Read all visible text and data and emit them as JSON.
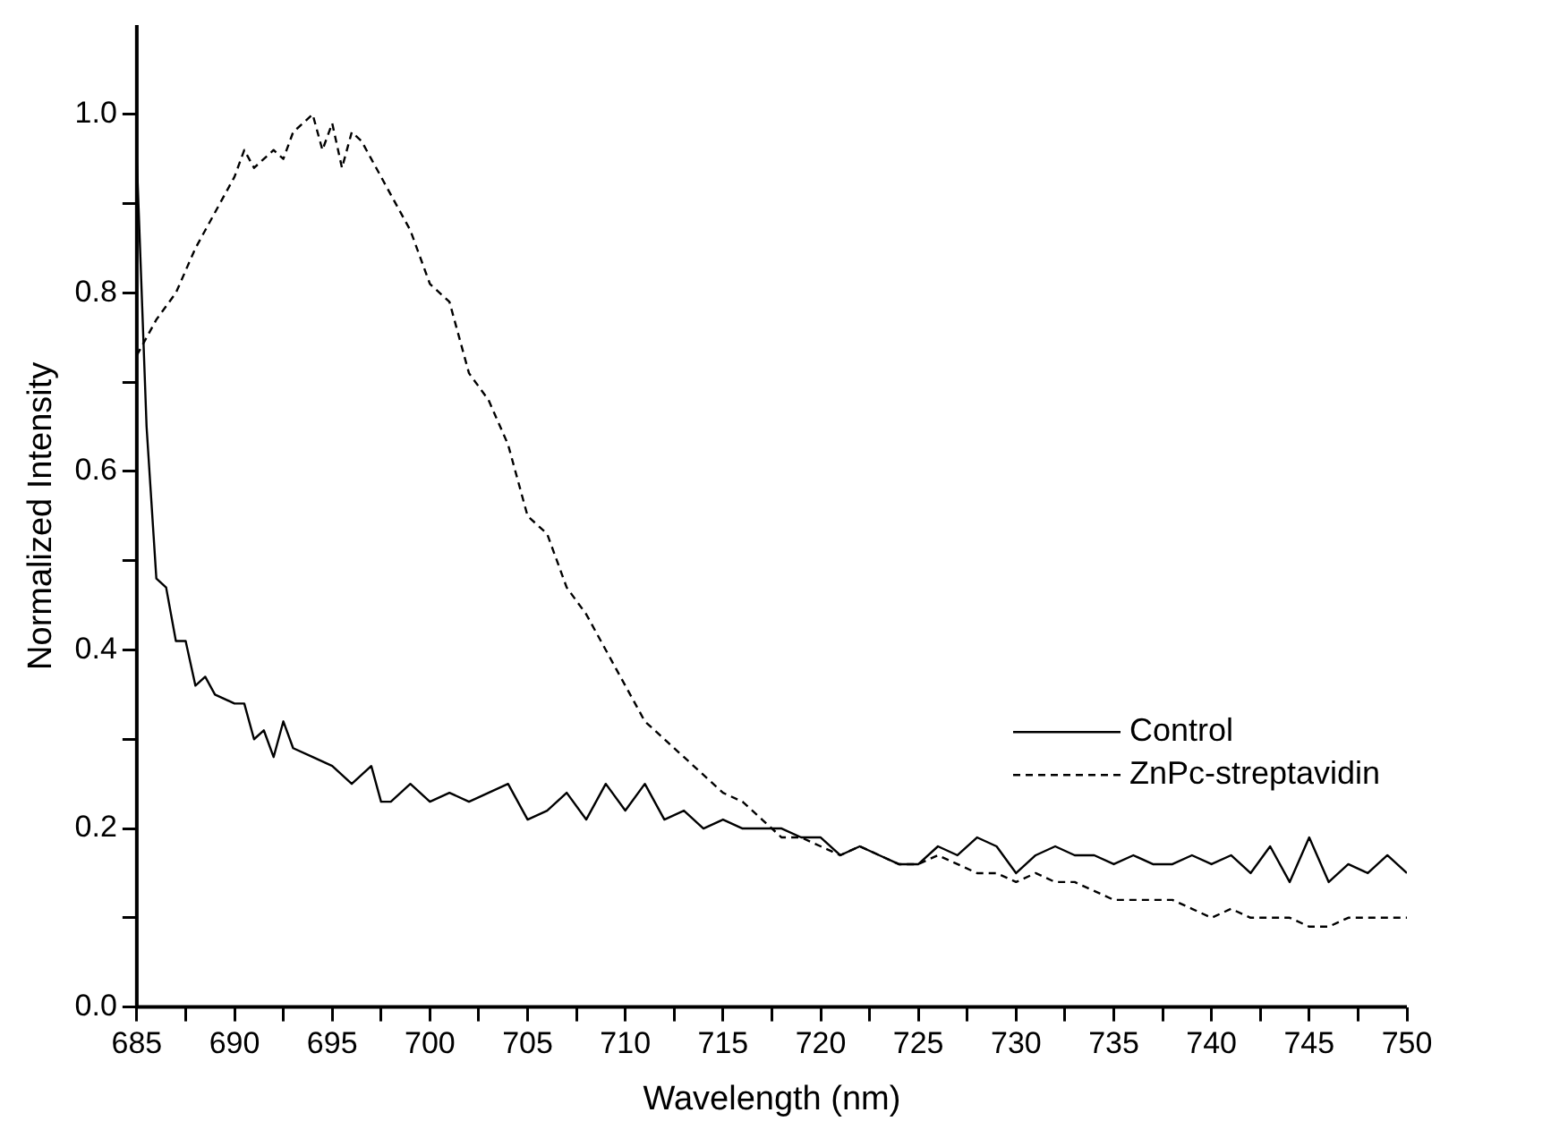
{
  "chart_data": {
    "type": "line",
    "xlabel": "Wavelength (nm)",
    "ylabel": "Normalized Intensity",
    "xlim": [
      685,
      750
    ],
    "ylim": [
      0,
      1.1
    ],
    "xticks": [
      685,
      {
        "value": 687.5,
        "label": null
      },
      690,
      {
        "value": 692.5,
        "label": null
      },
      695,
      {
        "value": 697.5,
        "label": null
      },
      700,
      {
        "value": 702.5,
        "label": null
      },
      705,
      {
        "value": 707.5,
        "label": null
      },
      710,
      {
        "value": 712.5,
        "label": null
      },
      715,
      {
        "value": 717.5,
        "label": null
      },
      720,
      {
        "value": 722.5,
        "label": null
      },
      725,
      {
        "value": 727.5,
        "label": null
      },
      730,
      {
        "value": 732.5,
        "label": null
      },
      735,
      {
        "value": 737.5,
        "label": null
      },
      740,
      {
        "value": 742.5,
        "label": null
      },
      745,
      {
        "value": 747.5,
        "label": null
      },
      750
    ],
    "yticks": [
      {
        "value": 0,
        "label": "0.0"
      },
      {
        "value": 0.1,
        "label": null
      },
      {
        "value": 0.2,
        "label": "0.2"
      },
      {
        "value": 0.3,
        "label": null
      },
      {
        "value": 0.4,
        "label": "0.4"
      },
      {
        "value": 0.5,
        "label": null
      },
      {
        "value": 0.6,
        "label": "0.6"
      },
      {
        "value": 0.7,
        "label": null
      },
      {
        "value": 0.8,
        "label": "0.8"
      },
      {
        "value": 0.9,
        "label": null
      },
      {
        "value": 1.0,
        "label": "1.0"
      }
    ],
    "grid": false,
    "legend": "right",
    "marker": "none",
    "series": [
      {
        "name": "Control",
        "color": "#000000",
        "line_style": "solid",
        "x": [
          685,
          685.5,
          686,
          686.5,
          687,
          687.5,
          688,
          688.5,
          689,
          690,
          690.5,
          691,
          691.5,
          692,
          692.5,
          693,
          694,
          695,
          696,
          697,
          697.5,
          698,
          699,
          700,
          701,
          702,
          703,
          704,
          705,
          706,
          707,
          708,
          709,
          710,
          711,
          712,
          713,
          714,
          715,
          716,
          717,
          718,
          719,
          720,
          721,
          722,
          723,
          724,
          725,
          726,
          727,
          728,
          729,
          730,
          731,
          732,
          733,
          734,
          735,
          736,
          737,
          738,
          739,
          740,
          741,
          742,
          743,
          744,
          745,
          746,
          747,
          748,
          749,
          750
        ],
        "values": [
          0.95,
          0.65,
          0.48,
          0.47,
          0.41,
          0.41,
          0.36,
          0.37,
          0.35,
          0.34,
          0.34,
          0.3,
          0.31,
          0.28,
          0.32,
          0.29,
          0.28,
          0.27,
          0.25,
          0.27,
          0.23,
          0.23,
          0.25,
          0.23,
          0.24,
          0.23,
          0.24,
          0.25,
          0.21,
          0.22,
          0.24,
          0.21,
          0.25,
          0.22,
          0.25,
          0.21,
          0.22,
          0.2,
          0.21,
          0.2,
          0.2,
          0.2,
          0.19,
          0.19,
          0.17,
          0.18,
          0.17,
          0.16,
          0.16,
          0.18,
          0.17,
          0.19,
          0.18,
          0.15,
          0.17,
          0.18,
          0.17,
          0.17,
          0.16,
          0.17,
          0.16,
          0.16,
          0.17,
          0.16,
          0.17,
          0.15,
          0.18,
          0.14,
          0.19,
          0.14,
          0.16,
          0.15,
          0.17,
          0.15
        ]
      },
      {
        "name": "ZnPc-streptavidin",
        "color": "#000000",
        "line_style": "dashed",
        "x": [
          685,
          686,
          687,
          688,
          689,
          690,
          690.5,
          691,
          692,
          692.5,
          693,
          694,
          694.5,
          695,
          695.5,
          696,
          696.5,
          697,
          698,
          699,
          700,
          701,
          702,
          703,
          704,
          705,
          706,
          707,
          708,
          709,
          710,
          711,
          712,
          713,
          714,
          715,
          716,
          717,
          718,
          719,
          720,
          721,
          722,
          723,
          724,
          725,
          726,
          727,
          728,
          729,
          730,
          731,
          732,
          733,
          734,
          735,
          736,
          737,
          738,
          739,
          740,
          741,
          742,
          743,
          744,
          745,
          746,
          747,
          748,
          749,
          750
        ],
        "values": [
          0.73,
          0.77,
          0.8,
          0.85,
          0.89,
          0.93,
          0.96,
          0.94,
          0.96,
          0.95,
          0.98,
          1.0,
          0.96,
          0.99,
          0.94,
          0.98,
          0.97,
          0.95,
          0.91,
          0.87,
          0.81,
          0.79,
          0.71,
          0.68,
          0.63,
          0.55,
          0.53,
          0.47,
          0.44,
          0.4,
          0.36,
          0.32,
          0.3,
          0.28,
          0.26,
          0.24,
          0.23,
          0.21,
          0.19,
          0.19,
          0.18,
          0.17,
          0.18,
          0.17,
          0.16,
          0.16,
          0.17,
          0.16,
          0.15,
          0.15,
          0.14,
          0.15,
          0.14,
          0.14,
          0.13,
          0.12,
          0.12,
          0.12,
          0.12,
          0.11,
          0.1,
          0.11,
          0.1,
          0.1,
          0.1,
          0.09,
          0.09,
          0.1,
          0.1,
          0.1,
          0.1
        ]
      }
    ]
  }
}
